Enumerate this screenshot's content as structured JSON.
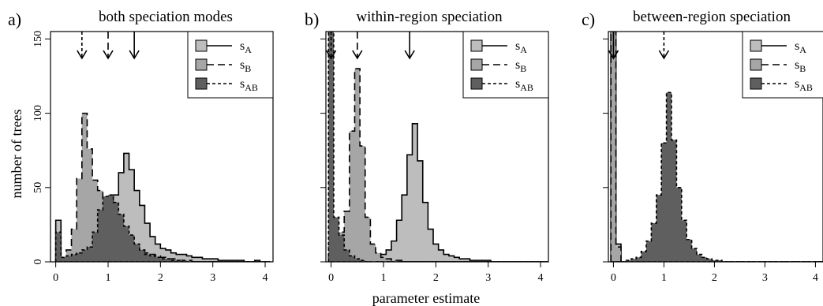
{
  "figure": {
    "xlabel": "parameter estimate",
    "ylabel": "number of trees",
    "colors": {
      "s_A": "#bdbdbd",
      "s_B": "#a6a6a6",
      "s_AB": "#5f5f5f"
    }
  },
  "chart_data": [
    {
      "type": "histogram",
      "panel_label": "a)",
      "title": "both speciation modes",
      "xlim": [
        -0.1,
        4.15
      ],
      "ylim": [
        0,
        155
      ],
      "xticks": [
        0,
        1,
        2,
        3,
        4
      ],
      "yticks": [
        0,
        50,
        100,
        150
      ],
      "show_y_tick_labels": true,
      "bin_width": 0.1,
      "bin_start": 0,
      "legend": {
        "position": "top-right",
        "entries": [
          {
            "key": "s_A",
            "label": "s",
            "sub": "A",
            "line": "solid"
          },
          {
            "key": "s_B",
            "label": "s",
            "sub": "B",
            "line": "dashed"
          },
          {
            "key": "s_AB",
            "label": "s",
            "sub": "AB",
            "line": "dotted"
          }
        ]
      },
      "arrows": [
        {
          "x": 0.5,
          "line": "dotted"
        },
        {
          "x": 1.0,
          "line": "dashed"
        },
        {
          "x": 1.5,
          "line": "solid"
        }
      ],
      "series": [
        {
          "key": "s_A",
          "line": "solid",
          "counts": [
            28,
            2,
            2,
            3,
            3,
            4,
            6,
            9,
            14,
            24,
            35,
            45,
            60,
            73,
            62,
            48,
            38,
            26,
            17,
            12,
            9,
            8,
            6,
            5,
            5,
            4,
            3,
            3,
            2,
            2,
            2,
            1,
            1,
            1,
            1,
            1,
            0,
            0,
            1,
            0,
            0
          ]
        },
        {
          "key": "s_B",
          "line": "dashed",
          "counts": [
            10,
            2,
            8,
            22,
            56,
            100,
            76,
            55,
            48,
            40,
            32,
            25,
            20,
            16,
            12,
            10,
            8,
            6,
            5,
            4,
            3,
            2,
            2,
            1,
            1,
            1,
            0,
            0,
            0,
            0,
            0,
            0,
            0,
            0,
            0,
            0,
            0,
            0,
            0,
            0,
            0
          ]
        },
        {
          "key": "s_AB",
          "line": "dotted",
          "counts": [
            20,
            3,
            4,
            5,
            6,
            8,
            10,
            20,
            35,
            44,
            45,
            40,
            32,
            24,
            18,
            12,
            8,
            5,
            4,
            3,
            2,
            2,
            1,
            1,
            1,
            0,
            0,
            0,
            0,
            0,
            0,
            0,
            0,
            0,
            0,
            0,
            0,
            0,
            0,
            0,
            0
          ]
        }
      ]
    },
    {
      "type": "histogram",
      "panel_label": "b)",
      "title": "within-region speciation",
      "xlim": [
        -0.1,
        4.15
      ],
      "ylim": [
        0,
        155
      ],
      "xticks": [
        0,
        1,
        2,
        3,
        4
      ],
      "yticks": [
        0,
        50,
        100,
        150
      ],
      "show_y_tick_labels": false,
      "bin_width": 0.1,
      "bin_start": -0.05,
      "legend": {
        "position": "top-right",
        "entries": [
          {
            "key": "s_A",
            "label": "s",
            "sub": "A",
            "line": "solid"
          },
          {
            "key": "s_B",
            "label": "s",
            "sub": "B",
            "line": "dashed"
          },
          {
            "key": "s_AB",
            "label": "s",
            "sub": "AB",
            "line": "dotted"
          }
        ]
      },
      "arrows": [
        {
          "x": 0.0,
          "line": "dotted"
        },
        {
          "x": 0.5,
          "line": "dashed"
        },
        {
          "x": 1.5,
          "line": "solid"
        }
      ],
      "series": [
        {
          "key": "s_A",
          "line": "solid",
          "counts": [
            0,
            0,
            0,
            0,
            0,
            1,
            2,
            3,
            4,
            4,
            5,
            8,
            14,
            28,
            45,
            72,
            93,
            68,
            40,
            22,
            12,
            8,
            5,
            4,
            3,
            2,
            2,
            1,
            1,
            1,
            1,
            0,
            0,
            0,
            0,
            0,
            0,
            0,
            0,
            0,
            0,
            0
          ]
        },
        {
          "key": "s_B",
          "line": "dashed",
          "counts": [
            10,
            6,
            20,
            34,
            88,
            130,
            78,
            30,
            12,
            6,
            3,
            2,
            1,
            1,
            0,
            0,
            0,
            0,
            0,
            0,
            0,
            0,
            0,
            0,
            0,
            0,
            0,
            0,
            0,
            0,
            0,
            0,
            0,
            0,
            0,
            0,
            0,
            0,
            0,
            0,
            0,
            0
          ]
        },
        {
          "key": "s_AB",
          "line": "dotted",
          "counts": [
            155,
            30,
            18,
            8,
            4,
            2,
            1,
            0,
            0,
            0,
            0,
            0,
            0,
            0,
            0,
            0,
            0,
            0,
            0,
            0,
            0,
            0,
            0,
            0,
            0,
            0,
            0,
            0,
            0,
            0,
            0,
            0,
            0,
            0,
            0,
            0,
            0,
            0,
            0,
            0,
            0,
            0
          ]
        }
      ]
    },
    {
      "type": "histogram",
      "panel_label": "c)",
      "title": "between-region speciation",
      "xlim": [
        -0.1,
        4.15
      ],
      "ylim": [
        0,
        155
      ],
      "xticks": [
        0,
        1,
        2,
        3,
        4
      ],
      "yticks": [
        0,
        50,
        100,
        150
      ],
      "show_y_tick_labels": false,
      "bin_width": 0.1,
      "bin_start": -0.05,
      "legend": {
        "position": "top-right",
        "entries": [
          {
            "key": "s_A",
            "label": "s",
            "sub": "A",
            "line": "solid"
          },
          {
            "key": "s_B",
            "label": "s",
            "sub": "B",
            "line": "dashed"
          },
          {
            "key": "s_AB",
            "label": "s",
            "sub": "AB",
            "line": "dotted"
          }
        ]
      },
      "arrows": [
        {
          "x": 0.0,
          "line": "solid"
        },
        {
          "x": 0.0,
          "line": "dashed"
        },
        {
          "x": 1.0,
          "line": "dotted"
        }
      ],
      "series": [
        {
          "key": "s_A",
          "line": "solid",
          "counts": [
            155,
            12,
            0,
            0,
            0,
            0,
            0,
            0,
            0,
            0,
            0,
            0,
            0,
            0,
            0,
            0,
            0,
            0,
            0,
            0,
            0,
            0,
            0,
            0,
            0,
            0,
            0,
            0,
            0,
            0,
            0,
            0,
            0,
            0,
            0,
            0,
            0,
            0,
            0,
            0,
            0,
            0
          ]
        },
        {
          "key": "s_B",
          "line": "dashed",
          "counts": [
            155,
            10,
            0,
            0,
            0,
            0,
            0,
            0,
            0,
            0,
            0,
            0,
            0,
            0,
            0,
            0,
            0,
            0,
            0,
            0,
            0,
            0,
            0,
            0,
            0,
            0,
            0,
            0,
            0,
            0,
            0,
            0,
            0,
            0,
            0,
            0,
            0,
            0,
            0,
            0,
            0,
            0
          ]
        },
        {
          "key": "s_AB",
          "line": "dotted",
          "counts": [
            0,
            0,
            0,
            1,
            2,
            3,
            7,
            14,
            26,
            45,
            80,
            114,
            82,
            50,
            28,
            15,
            9,
            5,
            3,
            2,
            1,
            1,
            0,
            0,
            0,
            0,
            0,
            0,
            0,
            0,
            0,
            0,
            0,
            0,
            0,
            0,
            0,
            0,
            0,
            0,
            0,
            0
          ]
        }
      ]
    }
  ]
}
